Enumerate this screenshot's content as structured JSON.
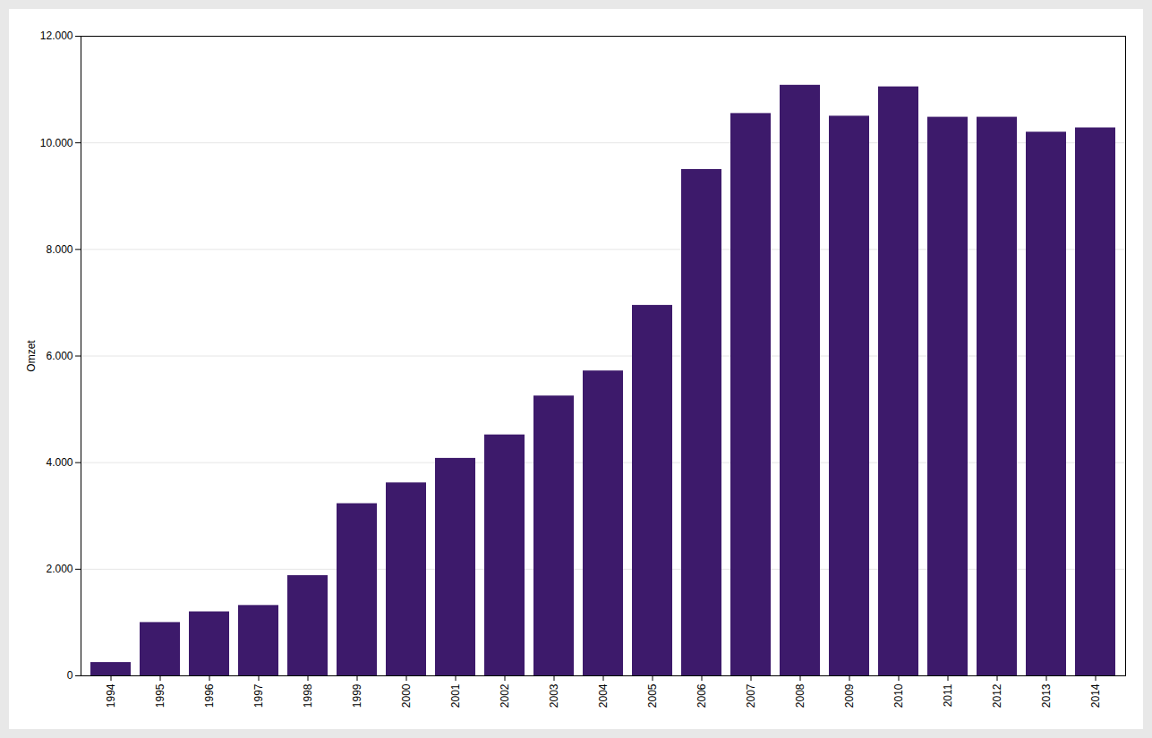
{
  "chart_data": {
    "type": "bar",
    "categories": [
      "1994",
      "1995",
      "1996",
      "1997",
      "1998",
      "1999",
      "2000",
      "2001",
      "2002",
      "2003",
      "2004",
      "2005",
      "2006",
      "2007",
      "2008",
      "2009",
      "2010",
      "2011",
      "2012",
      "2013",
      "2014"
    ],
    "values": [
      250,
      1000,
      1200,
      1320,
      1880,
      3230,
      3620,
      4080,
      4520,
      5250,
      5720,
      6950,
      9500,
      10550,
      11080,
      10500,
      11050,
      10480,
      10480,
      10200,
      10280
    ],
    "color": "#3d1a6b",
    "ylabel": "Omzet",
    "ylim": [
      0,
      12000
    ],
    "yticks": [
      0,
      {
        "value": 2000,
        "label": "2.000"
      },
      {
        "value": 4000,
        "label": "4.000"
      },
      {
        "value": 6000,
        "label": "6.000"
      },
      {
        "value": 8000,
        "label": "8.000"
      },
      {
        "value": 10000,
        "label": "10.000"
      },
      {
        "value": 12000,
        "label": "12.000"
      }
    ],
    "grid": true
  }
}
